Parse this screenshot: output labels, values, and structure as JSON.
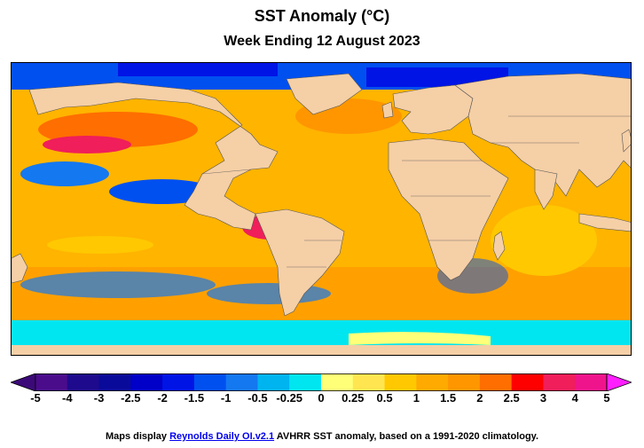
{
  "title": "SST Anomaly (°C)",
  "subtitle": "Week Ending 12 August 2023",
  "colorbar": {
    "ticks": [
      "-5",
      "-4",
      "-3",
      "-2.5",
      "-2",
      "-1.5",
      "-1",
      "-0.5",
      "-0.25",
      "0",
      "0.25",
      "0.5",
      "1",
      "1.5",
      "2",
      "2.5",
      "3",
      "4",
      "5"
    ],
    "colors": [
      "#3c0a78",
      "#4b0c8c",
      "#1e0a8c",
      "#0a0a9a",
      "#0000c8",
      "#0014e6",
      "#0050f0",
      "#1478f0",
      "#00b4f0",
      "#00e6f0",
      "#ffff78",
      "#ffe650",
      "#ffc800",
      "#ffaa00",
      "#ff9600",
      "#ff6e00",
      "#ff0000",
      "#f01e5a",
      "#f0148c",
      "#ff1eff"
    ]
  },
  "footer": {
    "prefix": "Maps display ",
    "link": "Reynolds Daily OI.v2.1",
    "suffix": " AVHRR SST anomaly, based on a 1991-2020 climatology."
  },
  "map": {
    "land_color": "#f5cfa6",
    "ice_color": "#00e6f0",
    "ocean_base": "#ffb400"
  }
}
